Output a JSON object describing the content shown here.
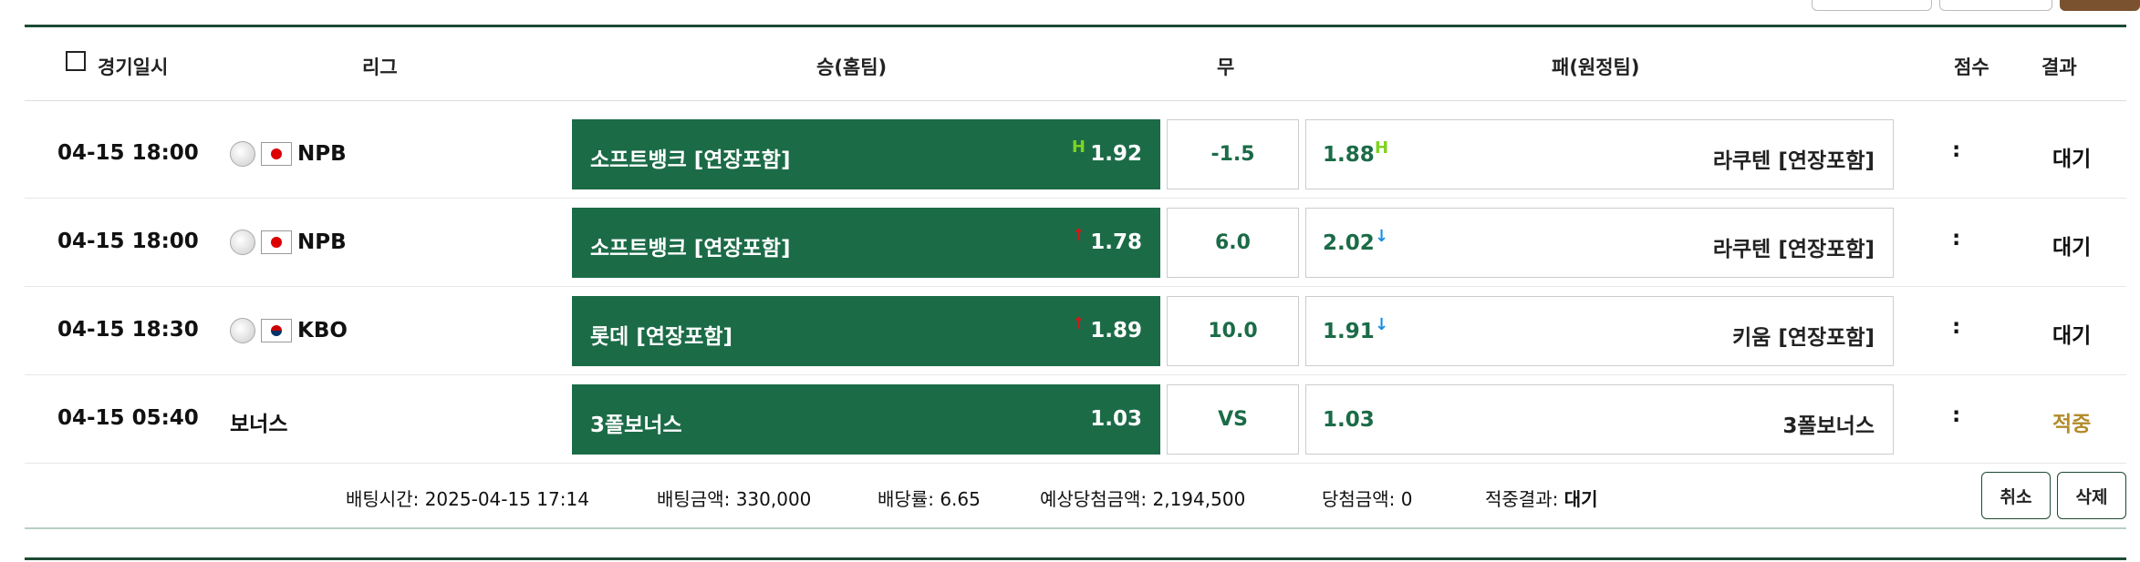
{
  "header": {
    "date_label": "경기일시",
    "league_label": "리그",
    "home_label": "승(홈팀)",
    "draw_label": "무",
    "away_label": "패(원정팀)",
    "score_label": "점수",
    "result_label": "결과"
  },
  "rows": [
    {
      "time": "04-15 18:00",
      "league": "NPB",
      "home_team": "소프트뱅크 [연장포함]",
      "home_odds": "1.92",
      "home_marker": "H",
      "draw": "-1.5",
      "away_odds": "1.88",
      "away_marker": "H",
      "away_team": "라쿠텐 [연장포함]",
      "score": ":",
      "result": "대기"
    },
    {
      "time": "04-15 18:00",
      "league": "NPB",
      "home_team": "소프트뱅크 [연장포함]",
      "home_odds": "1.78",
      "home_marker": "↑",
      "draw": "6.0",
      "away_odds": "2.02",
      "away_marker": "↓",
      "away_team": "라쿠텐 [연장포함]",
      "score": ":",
      "result": "대기"
    },
    {
      "time": "04-15 18:30",
      "league": "KBO",
      "home_team": "롯데 [연장포함]",
      "home_odds": "1.89",
      "home_marker": "↑",
      "draw": "10.0",
      "away_odds": "1.91",
      "away_marker": "↓",
      "away_team": "키움 [연장포함]",
      "score": ":",
      "result": "대기"
    },
    {
      "time": "04-15 05:40",
      "league": "보너스",
      "home_team": "3폴보너스",
      "home_odds": "1.03",
      "draw": "VS",
      "away_odds": "1.03",
      "away_team": "3폴보너스",
      "score": ":",
      "result": "적중"
    }
  ],
  "summary": {
    "bet_time_label": "배팅시간:",
    "bet_time": "2025-04-15 17:14",
    "bet_amount_label": "배팅금액:",
    "bet_amount": "330,000",
    "odds_label": "배당률:",
    "odds": "6.65",
    "expected_label": "예상당첨금액:",
    "expected": "2,194,500",
    "won_label": "당첨금액:",
    "won": "0",
    "hit_label": "적중결과:",
    "hit": "대기",
    "cancel_label": "취소",
    "delete_label": "삭제"
  },
  "colors": {
    "green": "#1b6b47",
    "dark_green": "#1c4a33",
    "gold": "#b28b2a",
    "up": "#cc1a1a",
    "down": "#1a8fe0",
    "handicap": "#7ed321"
  }
}
